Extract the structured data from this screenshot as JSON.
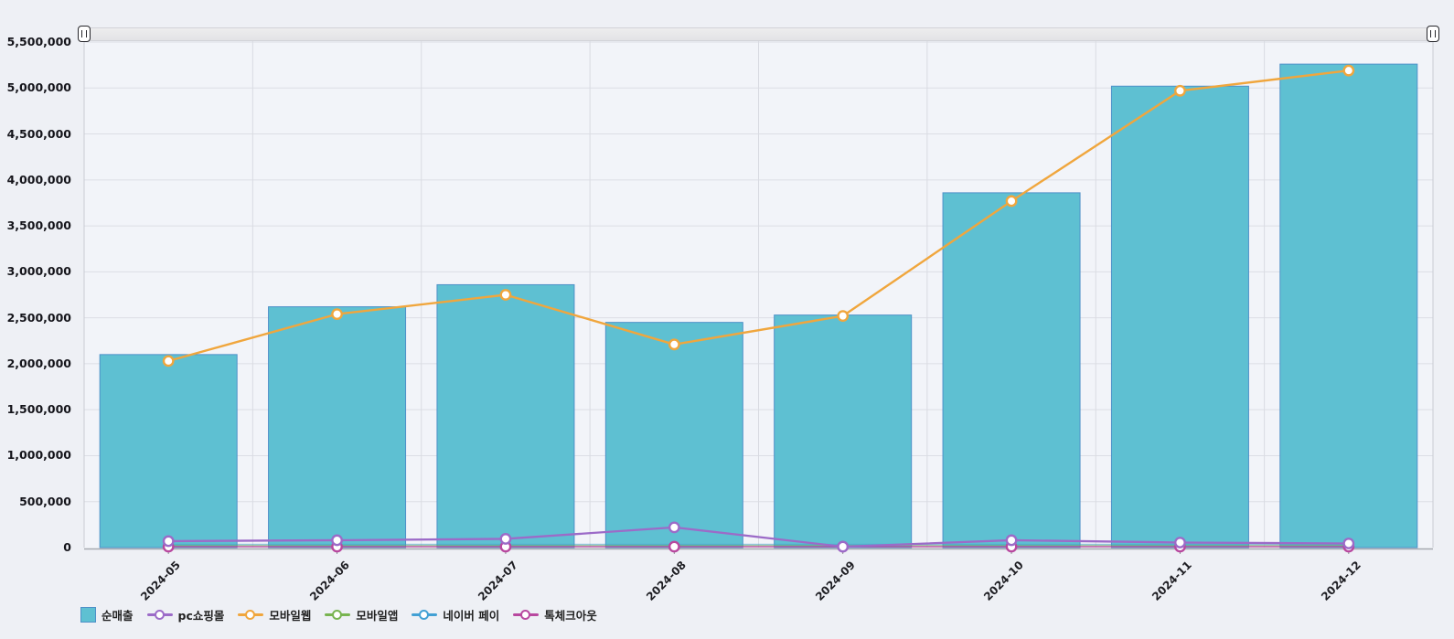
{
  "chart_data": {
    "type": "combo: bar + line",
    "title": "",
    "xlabel": "",
    "ylabel": "",
    "grid": true,
    "legend_position": "bottom",
    "y_axis": {
      "min": 0,
      "max": 5500000,
      "step": 500000
    },
    "categories": [
      "2024-05",
      "2024-06",
      "2024-07",
      "2024-08",
      "2024-09",
      "2024-10",
      "2024-11",
      "2024-12"
    ],
    "bar_series": {
      "name": "순매출",
      "color": "#5ec0d2",
      "border_color": "#4e90c8",
      "values": [
        2100000,
        2620000,
        2860000,
        2450000,
        2530000,
        3860000,
        5020000,
        5260000
      ]
    },
    "line_series": [
      {
        "name": "pc쇼핑몰",
        "color": "#9c6bc8",
        "markers": true,
        "values": [
          70000,
          80000,
          95000,
          220000,
          10000,
          80000,
          55000,
          45000
        ]
      },
      {
        "name": "모바일웹",
        "color": "#f0a63d",
        "markers": true,
        "values": [
          2030000,
          2540000,
          2750000,
          2210000,
          2520000,
          3770000,
          4970000,
          5190000
        ]
      },
      {
        "name": "모바일앱",
        "color": "#78b450",
        "markers": false,
        "values": [
          0,
          0,
          0,
          0,
          0,
          0,
          0,
          0
        ]
      },
      {
        "name": "네이버 페이",
        "color": "#42a0d4",
        "markers": false,
        "values": [
          0,
          0,
          0,
          0,
          0,
          0,
          0,
          0
        ]
      },
      {
        "name": "톡체크아웃",
        "color": "#b8489f",
        "markers": true,
        "values": [
          0,
          0,
          0,
          0,
          0,
          0,
          0,
          0
        ]
      }
    ]
  },
  "scrollbar": {
    "left_handle": "range-start",
    "right_handle": "range-end"
  }
}
